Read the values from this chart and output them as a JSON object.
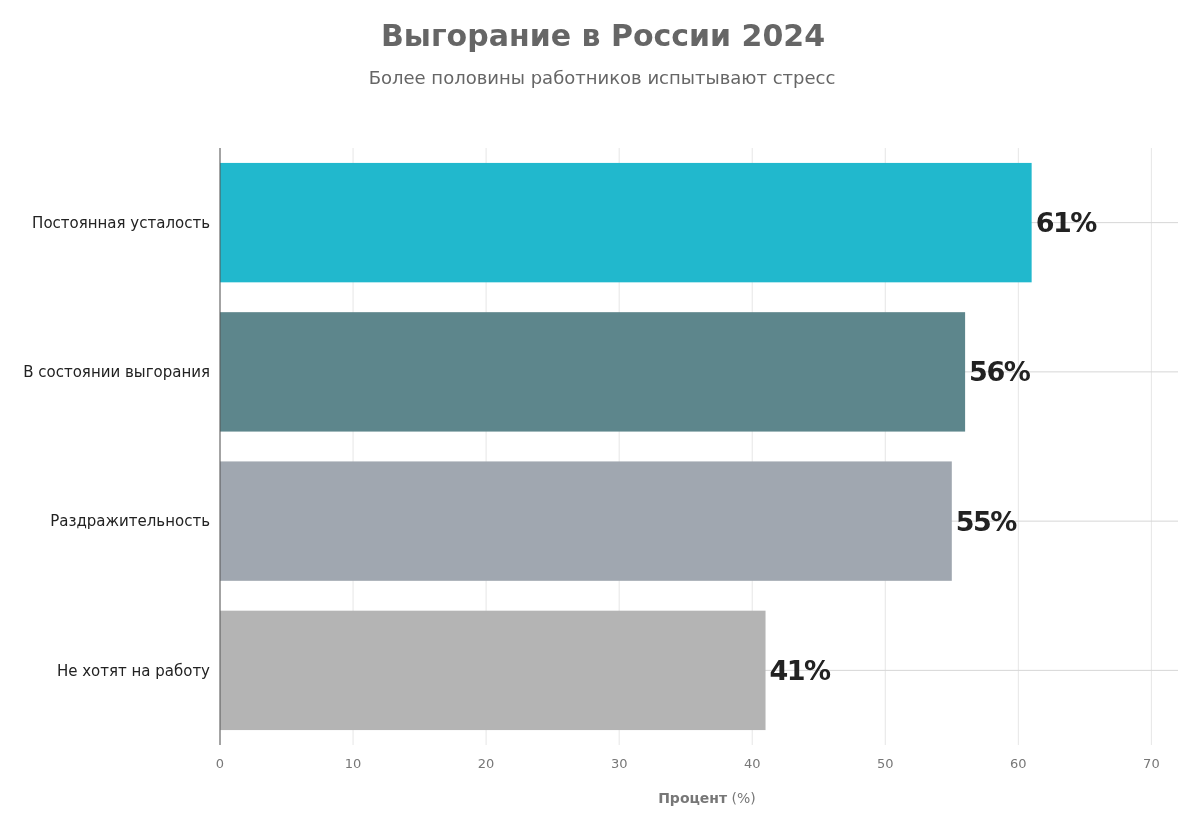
{
  "chart_data": {
    "type": "bar",
    "orientation": "horizontal",
    "title": "Выгорание в России 2024",
    "subtitle": "Более половины работников испытывают стресс",
    "xlabel": "Процент (%)",
    "categories": [
      "Постоянная усталость",
      "В состоянии выгорания",
      "Раздражительность",
      "Не хотят на работу"
    ],
    "values": [
      61,
      56,
      55,
      41
    ],
    "colors": [
      "#21b8cd",
      "#5d868c",
      "#a0a7b0",
      "#b4b4b4"
    ],
    "value_labels": [
      "61%",
      "56%",
      "55%",
      "41%"
    ],
    "xlim": [
      0,
      72
    ],
    "xticks": [
      0,
      10,
      20,
      30,
      40,
      50,
      60,
      70
    ],
    "grid": true
  }
}
